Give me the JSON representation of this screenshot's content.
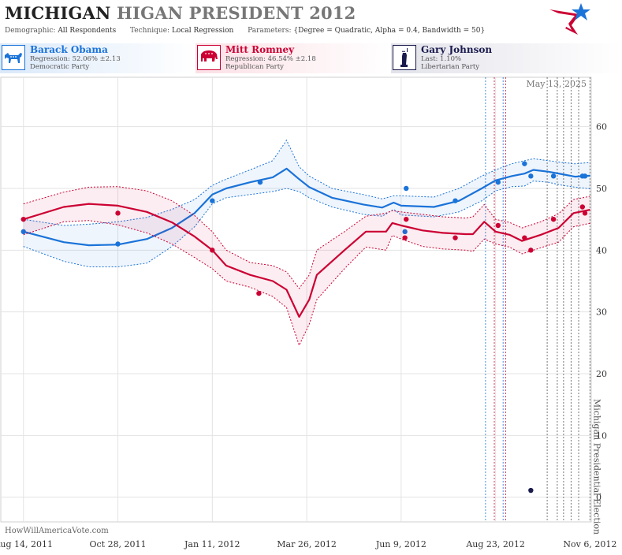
{
  "header": {
    "title_part1": "MICHIGAN",
    "title_part2": "HIGAN PRESIDENT",
    "title_year": "2012",
    "demographic_label": "Demographic:",
    "demographic_value": "All Respondents",
    "technique_label": "Technique:",
    "technique_value": "Local Regression",
    "parameters_label": "Parameters:",
    "parameters_value": "{Degree = Quadratic, Alpha = 0.4, Bandwidth = 50}"
  },
  "candidates": [
    {
      "name": "Barack Obama",
      "stat": "Regression: 52.06% ±2.13",
      "party": "Democratic Party",
      "color": "#1a73d9",
      "icon": "donkey-icon"
    },
    {
      "name": "Mitt Romney",
      "stat": "Regression: 46.54% ±2.18",
      "party": "Republican Party",
      "color": "#cc0033",
      "icon": "elephant-icon"
    },
    {
      "name": "Gary Johnson",
      "stat": "Last: 1.10%",
      "party": "Libertarian Party",
      "color": "#1a1a4d",
      "icon": "statue-of-liberty-icon"
    }
  ],
  "watermark": "HowWillAmericaVote.com",
  "chart_data": {
    "type": "line",
    "date_label": "May 13, 2025",
    "event_label": "Michigan Presidential Election",
    "x_ticks": [
      "Aug 14, 2011",
      "Oct 28, 2011",
      "Jan 11, 2012",
      "Mar 26, 2012",
      "Jun 9, 2012",
      "Aug 23, 2012",
      "Nov 6, 2012"
    ],
    "y_ticks": [
      0,
      10,
      20,
      30,
      40,
      50,
      60
    ],
    "xlim": [
      "2011-07-27",
      "2012-11-07"
    ],
    "ylim": [
      -4,
      68
    ],
    "grid": true,
    "series": [
      {
        "name": "Barack Obama",
        "color": "#1a73d9",
        "trend": [
          [
            "2011-08-14",
            43.0
          ],
          [
            "2011-09-15",
            41.3
          ],
          [
            "2011-10-05",
            40.8
          ],
          [
            "2011-10-28",
            40.9
          ],
          [
            "2011-11-20",
            41.8
          ],
          [
            "2011-12-10",
            43.6
          ],
          [
            "2011-12-28",
            46.0
          ],
          [
            "2012-01-11",
            49.0
          ],
          [
            "2012-01-22",
            50.0
          ],
          [
            "2012-02-10",
            51.0
          ],
          [
            "2012-02-28",
            51.8
          ],
          [
            "2012-03-10",
            53.2
          ],
          [
            "2012-03-20",
            51.5
          ],
          [
            "2012-03-28",
            50.2
          ],
          [
            "2012-04-15",
            48.5
          ],
          [
            "2012-05-10",
            47.4
          ],
          [
            "2012-05-25",
            46.9
          ],
          [
            "2012-06-03",
            47.7
          ],
          [
            "2012-06-09",
            47.2
          ],
          [
            "2012-07-05",
            47.0
          ],
          [
            "2012-07-25",
            48.0
          ],
          [
            "2012-08-12",
            50.0
          ],
          [
            "2012-08-23",
            51.3
          ],
          [
            "2012-09-05",
            52.0
          ],
          [
            "2012-09-15",
            52.4
          ],
          [
            "2012-09-22",
            53.0
          ],
          [
            "2012-10-04",
            52.7
          ],
          [
            "2012-10-15",
            52.3
          ],
          [
            "2012-10-25",
            51.9
          ],
          [
            "2012-11-06",
            52.06
          ]
        ],
        "band_upper": [
          [
            "2011-08-14",
            45.0
          ],
          [
            "2011-09-15",
            44.0
          ],
          [
            "2011-10-05",
            44.2
          ],
          [
            "2011-10-28",
            44.6
          ],
          [
            "2011-11-20",
            45.3
          ],
          [
            "2011-12-10",
            46.6
          ],
          [
            "2011-12-28",
            48.2
          ],
          [
            "2012-01-11",
            50.5
          ],
          [
            "2012-01-22",
            51.5
          ],
          [
            "2012-02-10",
            53.0
          ],
          [
            "2012-02-28",
            54.5
          ],
          [
            "2012-03-10",
            57.8
          ],
          [
            "2012-03-20",
            53.5
          ],
          [
            "2012-03-28",
            52.0
          ],
          [
            "2012-04-15",
            50.0
          ],
          [
            "2012-05-10",
            49.0
          ],
          [
            "2012-05-25",
            48.3
          ],
          [
            "2012-06-03",
            48.8
          ],
          [
            "2012-06-09",
            48.8
          ],
          [
            "2012-07-05",
            48.6
          ],
          [
            "2012-07-25",
            50.0
          ],
          [
            "2012-08-12",
            52.0
          ],
          [
            "2012-08-23",
            53.0
          ],
          [
            "2012-09-05",
            54.0
          ],
          [
            "2012-09-15",
            54.5
          ],
          [
            "2012-09-22",
            54.8
          ],
          [
            "2012-10-04",
            54.5
          ],
          [
            "2012-10-15",
            54.2
          ],
          [
            "2012-10-25",
            54.0
          ],
          [
            "2012-11-06",
            54.19
          ]
        ],
        "band_lower": [
          [
            "2011-08-14",
            40.6
          ],
          [
            "2011-09-15",
            38.2
          ],
          [
            "2011-10-05",
            37.3
          ],
          [
            "2011-10-28",
            37.3
          ],
          [
            "2011-11-20",
            37.9
          ],
          [
            "2011-12-10",
            40.6
          ],
          [
            "2011-12-28",
            43.8
          ],
          [
            "2012-01-11",
            47.5
          ],
          [
            "2012-01-22",
            48.5
          ],
          [
            "2012-02-10",
            49.0
          ],
          [
            "2012-02-28",
            49.5
          ],
          [
            "2012-03-10",
            50.0
          ],
          [
            "2012-03-20",
            49.5
          ],
          [
            "2012-03-28",
            48.5
          ],
          [
            "2012-04-15",
            47.0
          ],
          [
            "2012-05-10",
            45.8
          ],
          [
            "2012-05-25",
            45.5
          ],
          [
            "2012-06-03",
            46.6
          ],
          [
            "2012-06-09",
            45.7
          ],
          [
            "2012-07-05",
            45.4
          ],
          [
            "2012-07-25",
            46.2
          ],
          [
            "2012-08-12",
            48.0
          ],
          [
            "2012-08-23",
            49.6
          ],
          [
            "2012-09-05",
            50.3
          ],
          [
            "2012-09-15",
            50.4
          ],
          [
            "2012-09-22",
            51.2
          ],
          [
            "2012-10-04",
            51.0
          ],
          [
            "2012-10-15",
            50.5
          ],
          [
            "2012-10-25",
            50.2
          ],
          [
            "2012-11-06",
            49.93
          ]
        ],
        "polls": [
          [
            "2011-08-14",
            43
          ],
          [
            "2011-10-28",
            41
          ],
          [
            "2012-01-11",
            48
          ],
          [
            "2012-02-18",
            51
          ],
          [
            "2012-06-12",
            43
          ],
          [
            "2012-06-13",
            50
          ],
          [
            "2012-07-22",
            48
          ],
          [
            "2012-08-25",
            51
          ],
          [
            "2012-09-15",
            54
          ],
          [
            "2012-09-20",
            52
          ],
          [
            "2012-10-08",
            52
          ],
          [
            "2012-10-31",
            52
          ],
          [
            "2012-11-02",
            52
          ]
        ]
      },
      {
        "name": "Mitt Romney",
        "color": "#cc0033",
        "trend": [
          [
            "2011-08-14",
            45.0
          ],
          [
            "2011-09-15",
            47.0
          ],
          [
            "2011-10-05",
            47.5
          ],
          [
            "2011-10-28",
            47.2
          ],
          [
            "2011-11-20",
            46.2
          ],
          [
            "2011-12-10",
            44.5
          ],
          [
            "2011-12-28",
            42.2
          ],
          [
            "2012-01-11",
            40.0
          ],
          [
            "2012-01-22",
            37.5
          ],
          [
            "2012-02-10",
            36.0
          ],
          [
            "2012-02-28",
            35.0
          ],
          [
            "2012-03-10",
            33.6
          ],
          [
            "2012-03-20",
            29.2
          ],
          [
            "2012-03-28",
            32.0
          ],
          [
            "2012-04-03",
            36.0
          ],
          [
            "2012-04-25",
            40.0
          ],
          [
            "2012-05-12",
            43.0
          ],
          [
            "2012-05-28",
            43.0
          ],
          [
            "2012-06-02",
            44.4
          ],
          [
            "2012-06-09",
            44.0
          ],
          [
            "2012-06-26",
            43.2
          ],
          [
            "2012-07-12",
            42.8
          ],
          [
            "2012-07-30",
            42.6
          ],
          [
            "2012-08-05",
            42.6
          ],
          [
            "2012-08-14",
            44.6
          ],
          [
            "2012-08-23",
            43.0
          ],
          [
            "2012-09-03",
            42.5
          ],
          [
            "2012-09-13",
            41.5
          ],
          [
            "2012-09-28",
            42.5
          ],
          [
            "2012-10-12",
            43.6
          ],
          [
            "2012-10-24",
            46.0
          ],
          [
            "2012-11-06",
            46.54
          ]
        ],
        "band_upper": [
          [
            "2011-08-14",
            47.5
          ],
          [
            "2011-09-15",
            49.4
          ],
          [
            "2011-10-05",
            50.2
          ],
          [
            "2011-10-28",
            50.3
          ],
          [
            "2011-11-20",
            49.6
          ],
          [
            "2011-12-10",
            48.0
          ],
          [
            "2011-12-28",
            45.6
          ],
          [
            "2012-01-11",
            43.0
          ],
          [
            "2012-01-22",
            40.0
          ],
          [
            "2012-02-10",
            38.0
          ],
          [
            "2012-02-28",
            37.5
          ],
          [
            "2012-03-10",
            36.5
          ],
          [
            "2012-03-20",
            33.8
          ],
          [
            "2012-03-28",
            36.0
          ],
          [
            "2012-04-03",
            40.0
          ],
          [
            "2012-04-25",
            43.0
          ],
          [
            "2012-05-12",
            45.5
          ],
          [
            "2012-05-28",
            46.0
          ],
          [
            "2012-06-02",
            46.4
          ],
          [
            "2012-06-09",
            46.2
          ],
          [
            "2012-06-26",
            45.8
          ],
          [
            "2012-07-12",
            45.4
          ],
          [
            "2012-07-30",
            45.2
          ],
          [
            "2012-08-05",
            45.4
          ],
          [
            "2012-08-14",
            47.4
          ],
          [
            "2012-08-23",
            45.0
          ],
          [
            "2012-09-03",
            44.5
          ],
          [
            "2012-09-13",
            43.6
          ],
          [
            "2012-09-28",
            44.6
          ],
          [
            "2012-10-12",
            45.9
          ],
          [
            "2012-10-24",
            48.2
          ],
          [
            "2012-11-06",
            48.72
          ]
        ],
        "band_lower": [
          [
            "2011-08-14",
            42.5
          ],
          [
            "2011-09-15",
            44.6
          ],
          [
            "2011-10-05",
            44.8
          ],
          [
            "2011-10-28",
            44.1
          ],
          [
            "2011-11-20",
            42.8
          ],
          [
            "2011-12-10",
            41.0
          ],
          [
            "2011-12-28",
            38.8
          ],
          [
            "2012-01-11",
            37.0
          ],
          [
            "2012-01-22",
            35.0
          ],
          [
            "2012-02-10",
            34.0
          ],
          [
            "2012-02-28",
            32.5
          ],
          [
            "2012-03-10",
            30.7
          ],
          [
            "2012-03-20",
            24.6
          ],
          [
            "2012-03-28",
            28.0
          ],
          [
            "2012-04-03",
            32.0
          ],
          [
            "2012-04-25",
            37.0
          ],
          [
            "2012-05-12",
            40.5
          ],
          [
            "2012-05-28",
            40.0
          ],
          [
            "2012-06-02",
            42.4
          ],
          [
            "2012-06-09",
            41.8
          ],
          [
            "2012-06-26",
            40.6
          ],
          [
            "2012-07-12",
            40.2
          ],
          [
            "2012-07-30",
            40.0
          ],
          [
            "2012-08-05",
            39.8
          ],
          [
            "2012-08-14",
            41.8
          ],
          [
            "2012-08-23",
            41.0
          ],
          [
            "2012-09-03",
            40.5
          ],
          [
            "2012-09-13",
            39.4
          ],
          [
            "2012-09-28",
            40.4
          ],
          [
            "2012-10-12",
            41.3
          ],
          [
            "2012-10-24",
            43.8
          ],
          [
            "2012-11-06",
            44.36
          ]
        ],
        "polls": [
          [
            "2011-08-14",
            45
          ],
          [
            "2011-10-28",
            46
          ],
          [
            "2012-01-11",
            40
          ],
          [
            "2012-02-17",
            33
          ],
          [
            "2012-06-12",
            42
          ],
          [
            "2012-06-13",
            45
          ],
          [
            "2012-07-22",
            42
          ],
          [
            "2012-08-25",
            44
          ],
          [
            "2012-09-15",
            42
          ],
          [
            "2012-09-20",
            40
          ],
          [
            "2012-10-08",
            45
          ],
          [
            "2012-10-31",
            47
          ],
          [
            "2012-11-02",
            46
          ]
        ]
      },
      {
        "name": "Gary Johnson",
        "color": "#1a1a4d",
        "polls": [
          [
            "2012-09-20",
            1.1
          ]
        ]
      }
    ],
    "vertical_markers": [
      {
        "date": "2012-08-15",
        "color": "#1a73d9"
      },
      {
        "date": "2012-08-22",
        "color": "#cc0033"
      },
      {
        "date": "2012-08-29",
        "color": "#1a73d9"
      },
      {
        "date": "2012-08-31",
        "color": "#cc0033"
      },
      {
        "date": "2012-10-03",
        "color": "#555555"
      },
      {
        "date": "2012-10-11",
        "color": "#555555"
      },
      {
        "date": "2012-10-16",
        "color": "#555555"
      },
      {
        "date": "2012-10-22",
        "color": "#555555"
      },
      {
        "date": "2012-10-28",
        "color": "#555555"
      },
      {
        "date": "2012-11-06",
        "color": "#555555"
      }
    ]
  }
}
